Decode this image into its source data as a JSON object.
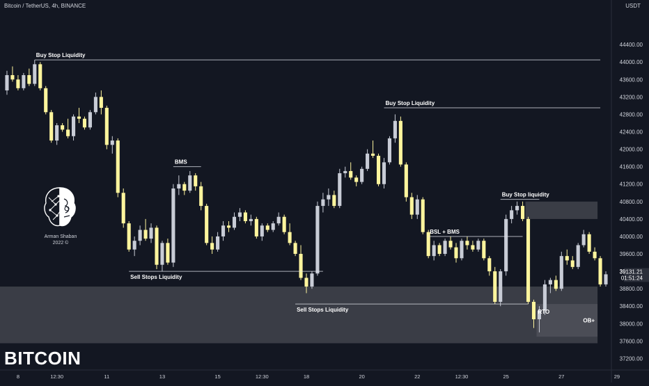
{
  "header": {
    "title": "Bitcoin / TetherUS, 4h, BINANCE",
    "currency": "USDT"
  },
  "big_title": "BITCOIN",
  "logo": {
    "name": "Arman Shaban",
    "year": "2022 ©"
  },
  "price_badges": {
    "last": "39131.21",
    "countdown": "01:51:24"
  },
  "colors": {
    "background": "#131722",
    "bull": "#c8ccd6",
    "bear": "#fff59d",
    "zone": "#5b5d65",
    "line": "#e0e3eb",
    "text": "#d1d4dc"
  },
  "chart_data": {
    "type": "candlestick",
    "title": "Bitcoin / TetherUS, 4h, BINANCE",
    "ylim": [
      37000,
      45200
    ],
    "y_ticks": [
      37200,
      37600,
      38000,
      38400,
      38800,
      39200,
      39600,
      40000,
      40400,
      40800,
      41200,
      41600,
      42000,
      42400,
      42800,
      43200,
      43600,
      44000,
      44400
    ],
    "y_tick_labels": [
      "37200.00",
      "37600.00",
      "38000.00",
      "38400.00",
      "38800.00",
      "39200.00",
      "39600.00",
      "40000.00",
      "40400.00",
      "40800.00",
      "41200.00",
      "41600.00",
      "42000.00",
      "42400.00",
      "42800.00",
      "43200.00",
      "43600.00",
      "44000.00",
      "44400.00"
    ],
    "x_ticks": [
      {
        "label": "8",
        "index": 2
      },
      {
        "label": "12:30",
        "index": 9
      },
      {
        "label": "11",
        "index": 18
      },
      {
        "label": "13",
        "index": 28
      },
      {
        "label": "15",
        "index": 38
      },
      {
        "label": "12:30",
        "index": 46
      },
      {
        "label": "18",
        "index": 54
      },
      {
        "label": "20",
        "index": 64
      },
      {
        "label": "22",
        "index": 74
      },
      {
        "label": "12:30",
        "index": 82
      },
      {
        "label": "25",
        "index": 90
      },
      {
        "label": "27",
        "index": 100
      },
      {
        "label": "29",
        "index": 110
      },
      {
        "label": "12:30",
        "index": 118
      }
    ],
    "candles": [
      [
        43350,
        43800,
        43250,
        43700
      ],
      [
        43700,
        43900,
        43550,
        43600
      ],
      [
        43600,
        43700,
        43350,
        43400
      ],
      [
        43400,
        43750,
        43350,
        43700
      ],
      [
        43700,
        43850,
        43450,
        43500
      ],
      [
        43500,
        44050,
        43450,
        43950
      ],
      [
        43950,
        44000,
        43350,
        43400
      ],
      [
        43400,
        43450,
        42800,
        42850
      ],
      [
        42850,
        42900,
        42150,
        42200
      ],
      [
        42200,
        42600,
        42100,
        42550
      ],
      [
        42550,
        42600,
        42400,
        42450
      ],
      [
        42450,
        42700,
        42250,
        42300
      ],
      [
        42300,
        42800,
        42200,
        42750
      ],
      [
        42750,
        42950,
        42600,
        42700
      ],
      [
        42700,
        42750,
        42450,
        42500
      ],
      [
        42500,
        42900,
        42450,
        42850
      ],
      [
        42850,
        43300,
        42800,
        43200
      ],
      [
        43200,
        43350,
        42800,
        42950
      ],
      [
        42950,
        43000,
        42000,
        42100
      ],
      [
        42100,
        42300,
        41900,
        42200
      ],
      [
        42200,
        42250,
        40900,
        41000
      ],
      [
        41000,
        41100,
        40200,
        40300
      ],
      [
        40300,
        40350,
        39650,
        39700
      ],
      [
        39700,
        40000,
        39550,
        39900
      ],
      [
        39900,
        40250,
        39800,
        40150
      ],
      [
        40150,
        40400,
        39900,
        39950
      ],
      [
        39950,
        40300,
        39850,
        40200
      ],
      [
        40200,
        40250,
        39250,
        39350
      ],
      [
        39350,
        39900,
        39200,
        39850
      ],
      [
        39850,
        39950,
        39350,
        39400
      ],
      [
        39400,
        41200,
        39300,
        41100
      ],
      [
        41100,
        41400,
        40950,
        41200
      ],
      [
        41200,
        41250,
        40950,
        41050
      ],
      [
        41050,
        41500,
        41000,
        41400
      ],
      [
        41400,
        41450,
        41050,
        41150
      ],
      [
        41150,
        41250,
        40600,
        40700
      ],
      [
        40700,
        40750,
        39800,
        39850
      ],
      [
        39850,
        40000,
        39600,
        39700
      ],
      [
        39700,
        40100,
        39650,
        40000
      ],
      [
        40000,
        40350,
        39900,
        40250
      ],
      [
        40250,
        40350,
        40100,
        40200
      ],
      [
        40200,
        40550,
        40150,
        40450
      ],
      [
        40450,
        40650,
        40350,
        40550
      ],
      [
        40550,
        40600,
        40300,
        40350
      ],
      [
        40350,
        40500,
        40250,
        40400
      ],
      [
        40400,
        40450,
        39950,
        40000
      ],
      [
        40000,
        40300,
        39900,
        40250
      ],
      [
        40250,
        40300,
        40100,
        40150
      ],
      [
        40150,
        40350,
        40100,
        40300
      ],
      [
        40300,
        40550,
        40250,
        40450
      ],
      [
        40450,
        40500,
        40050,
        40100
      ],
      [
        40100,
        40300,
        39800,
        39850
      ],
      [
        39850,
        39900,
        39550,
        39600
      ],
      [
        39600,
        39800,
        39000,
        39050
      ],
      [
        39050,
        39150,
        38700,
        38850
      ],
      [
        38850,
        39200,
        38800,
        39150
      ],
      [
        39150,
        40800,
        39100,
        40700
      ],
      [
        40700,
        41000,
        40550,
        40850
      ],
      [
        40850,
        41100,
        40700,
        40950
      ],
      [
        40950,
        41050,
        40650,
        40700
      ],
      [
        40700,
        41550,
        40650,
        41450
      ],
      [
        41450,
        41600,
        41350,
        41500
      ],
      [
        41500,
        41700,
        41300,
        41350
      ],
      [
        41350,
        41400,
        41150,
        41250
      ],
      [
        41250,
        41600,
        41200,
        41550
      ],
      [
        41550,
        42000,
        41500,
        41900
      ],
      [
        41900,
        42200,
        41800,
        41850
      ],
      [
        41850,
        41900,
        41150,
        41200
      ],
      [
        41200,
        41800,
        41100,
        41700
      ],
      [
        41700,
        42300,
        41650,
        42250
      ],
      [
        42250,
        42800,
        42150,
        42650
      ],
      [
        42650,
        42750,
        41600,
        41650
      ],
      [
        41650,
        41700,
        40800,
        40900
      ],
      [
        40900,
        41000,
        40400,
        40500
      ],
      [
        40500,
        40950,
        40400,
        40850
      ],
      [
        40850,
        40900,
        40050,
        40100
      ],
      [
        40100,
        40150,
        39500,
        39550
      ],
      [
        39550,
        39900,
        39450,
        39800
      ],
      [
        39800,
        39850,
        39550,
        39600
      ],
      [
        39600,
        39950,
        39550,
        39900
      ],
      [
        39900,
        40000,
        39700,
        39750
      ],
      [
        39750,
        39850,
        39400,
        39500
      ],
      [
        39500,
        39950,
        39450,
        39900
      ],
      [
        39900,
        40000,
        39700,
        39800
      ],
      [
        39800,
        39900,
        39650,
        39700
      ],
      [
        39700,
        39950,
        39650,
        39900
      ],
      [
        39900,
        39950,
        39450,
        39500
      ],
      [
        39500,
        39550,
        39100,
        39200
      ],
      [
        39200,
        39300,
        38450,
        38500
      ],
      [
        38500,
        39250,
        38400,
        39200
      ],
      [
        39200,
        40500,
        39100,
        40400
      ],
      [
        40400,
        40700,
        40300,
        40600
      ],
      [
        40600,
        40800,
        40500,
        40700
      ],
      [
        40700,
        40800,
        40350,
        40400
      ],
      [
        40400,
        40450,
        38450,
        38500
      ],
      [
        38500,
        38550,
        37900,
        38100
      ],
      [
        38100,
        38400,
        37800,
        38300
      ],
      [
        38300,
        39000,
        38200,
        38900
      ],
      [
        38900,
        39050,
        38700,
        39000
      ],
      [
        39000,
        39100,
        38750,
        38800
      ],
      [
        38800,
        39650,
        38750,
        39550
      ],
      [
        39550,
        39700,
        39350,
        39450
      ],
      [
        39450,
        39550,
        39250,
        39300
      ],
      [
        39300,
        39850,
        39250,
        39800
      ],
      [
        39800,
        40150,
        39750,
        40050
      ],
      [
        40050,
        40100,
        39600,
        39650
      ],
      [
        39650,
        39750,
        39450,
        39500
      ],
      [
        39500,
        39550,
        38850,
        38900
      ],
      [
        38900,
        39200,
        38850,
        39131
      ]
    ],
    "zones": [
      {
        "label": "",
        "from": 37550,
        "to": 38850,
        "x_start_index": 0,
        "x_end_index": 106
      },
      {
        "label": "OB+",
        "from": 37700,
        "to": 38450,
        "x_start_index": 96,
        "x_end_index": 106
      },
      {
        "label": "",
        "from": 40400,
        "to": 40800,
        "x_start_index": 94,
        "x_end_index": 106
      }
    ],
    "annotations": [
      {
        "text": "Buy Stop Liquidity",
        "price": 44050,
        "x_start_index": 5,
        "x_end_index": 107
      },
      {
        "text": "Buy Stop Liquidity",
        "price": 42950,
        "x_start_index": 68,
        "x_end_index": 107
      },
      {
        "text": "BMS",
        "price": 41600,
        "x_start_index": 30,
        "x_end_index": 35
      },
      {
        "text": "Sell Stops Liquidity",
        "price": 39200,
        "x_start_index": 22,
        "x_end_index": 57
      },
      {
        "text": "Sell Stops Liquidity",
        "price": 38450,
        "x_start_index": 52,
        "x_end_index": 94
      },
      {
        "text": "BSL + BMS",
        "price": 40000,
        "x_start_index": 76,
        "x_end_index": 93
      },
      {
        "text": "Buy Stop liquidity",
        "price": 40850,
        "x_start_index": 89,
        "x_end_index": 96
      },
      {
        "text": "RTO",
        "price": 38450,
        "x_start_index": 95,
        "x_end_index": 97
      }
    ]
  }
}
